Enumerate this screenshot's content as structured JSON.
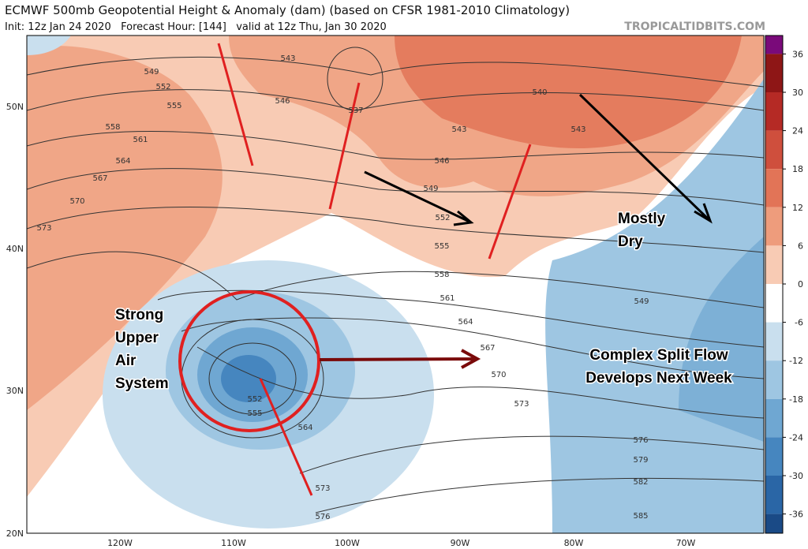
{
  "header": {
    "title": "ECMWF 500mb Geopotential Height & Anomaly (dam) (based on CFSR 1981-2010 Climatology)",
    "subtitle": "Init: 12z Jan 24 2020   Forecast Hour: [144]   valid at 12z Thu, Jan 30 2020",
    "source": "TROPICALTIDBITS.COM"
  },
  "latitude_labels": [
    "50N",
    "40N",
    "30N",
    "20N"
  ],
  "longitude_labels": [
    "120W",
    "110W",
    "100W",
    "90W",
    "80W",
    "70W"
  ],
  "contour_labels": [
    543,
    549,
    552,
    555,
    546,
    537,
    558,
    561,
    564,
    567,
    570,
    573,
    540,
    543,
    546,
    543,
    549,
    552,
    555,
    558,
    561,
    564,
    567,
    570,
    573,
    549,
    552,
    555,
    564,
    573,
    576,
    576,
    579,
    582,
    585
  ],
  "colorbar_ticks": [
    36,
    30,
    24,
    18,
    12,
    6,
    0,
    -6,
    -12,
    -18,
    -24,
    -30,
    -36
  ],
  "colorbar_colors": [
    "#7a0a7a",
    "#8e1616",
    "#b52a25",
    "#cf4f3d",
    "#e27457",
    "#ee9c7c",
    "#f8cbb4",
    "#ffffff",
    "#c9dfee",
    "#9ec6e2",
    "#6fa7d2",
    "#4686bf",
    "#2a66a6",
    "#1a4a86",
    "#112f62"
  ],
  "annotations": [
    [
      "Strong",
      "Upper",
      "Air",
      "System"
    ],
    [
      "Mostly",
      "Dry"
    ],
    [
      "Complex Split Flow",
      "Develops Next Week"
    ]
  ]
}
